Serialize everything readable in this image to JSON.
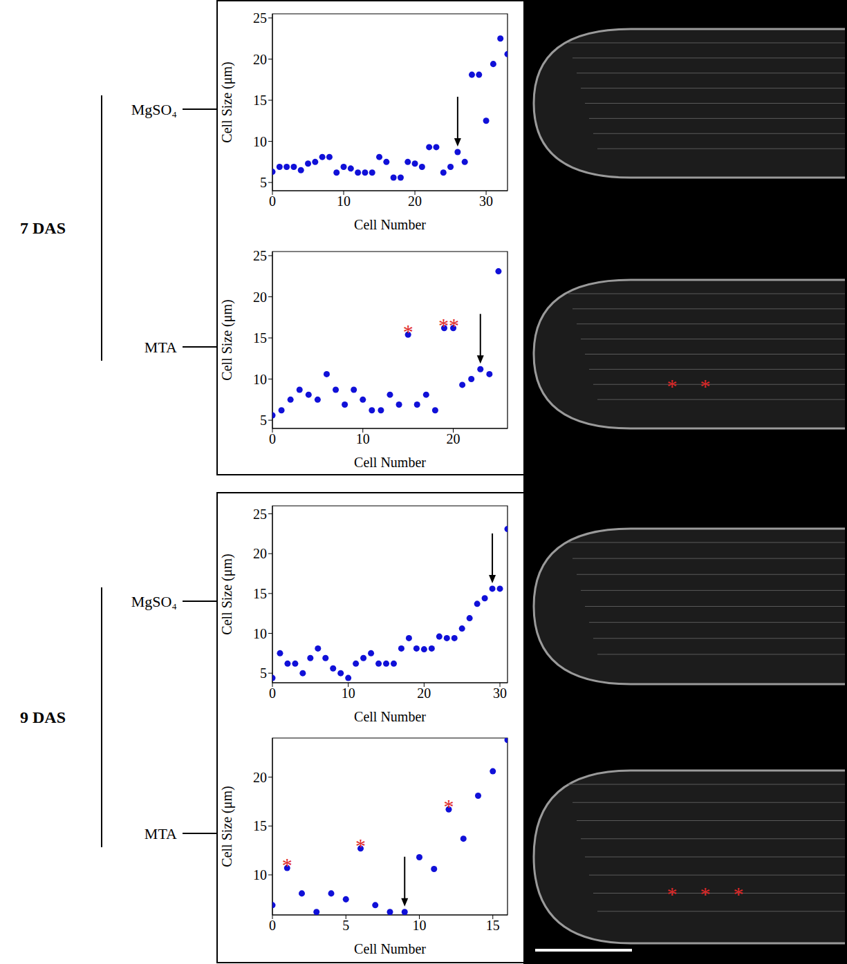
{
  "groups": [
    {
      "label": "7 DAS",
      "conditions": [
        "MgSO₄",
        "MTA"
      ]
    },
    {
      "label": "9 DAS",
      "conditions": [
        "MgSO₄",
        "MTA"
      ]
    }
  ],
  "chart_data": [
    {
      "type": "scatter",
      "x": [
        0,
        1,
        2,
        3,
        4,
        5,
        6,
        7,
        8,
        9,
        10,
        11,
        12,
        13,
        14,
        15,
        16,
        17,
        18,
        19,
        20,
        21,
        22,
        23,
        24,
        25,
        26,
        27,
        28,
        29,
        30,
        31,
        32,
        33
      ],
      "values": [
        6.3,
        6.9,
        6.9,
        6.9,
        6.5,
        7.3,
        7.5,
        8.1,
        8.1,
        6.2,
        6.9,
        6.7,
        6.2,
        6.2,
        6.2,
        8.1,
        7.5,
        5.6,
        5.6,
        7.5,
        7.3,
        6.9,
        9.3,
        9.3,
        6.2,
        6.9,
        8.7,
        7.5,
        18.1,
        18.1,
        12.5,
        19.4,
        22.5,
        20.6
      ],
      "color": "#1010d8",
      "marker": "circle",
      "xlim": [
        0,
        33
      ],
      "xticks": [
        0,
        10,
        20,
        30
      ],
      "ylim": [
        4,
        25.5
      ],
      "yticks": [
        5,
        10,
        15,
        20,
        25
      ],
      "x_label": "Cell Number",
      "y_label": "Cell Size (μm)",
      "arrow": {
        "x": 26,
        "y": 8.7
      },
      "annotations": [],
      "image_annotations": []
    },
    {
      "type": "scatter",
      "x": [
        0,
        1,
        2,
        3,
        4,
        5,
        6,
        7,
        8,
        9,
        10,
        11,
        12,
        13,
        14,
        15,
        16,
        17,
        18,
        19,
        20,
        21,
        22,
        23,
        24,
        25
      ],
      "values": [
        5.6,
        6.2,
        7.5,
        8.7,
        8.1,
        7.5,
        10.6,
        8.7,
        6.9,
        8.7,
        7.5,
        6.2,
        6.2,
        8.1,
        6.9,
        15.4,
        6.9,
        8.1,
        6.2,
        16.2,
        16.2,
        9.3,
        10.0,
        11.2,
        10.6,
        23.1
      ],
      "color": "#1010d8",
      "marker": "circle",
      "xlim": [
        0,
        26
      ],
      "xticks": [
        0,
        10,
        20
      ],
      "ylim": [
        4,
        25.5
      ],
      "yticks": [
        5,
        10,
        15,
        20,
        25
      ],
      "x_label": "Cell Number",
      "y_label": "Cell Size (μm)",
      "arrow": {
        "x": 23,
        "y": 11.2
      },
      "annotations": [
        {
          "x": 15,
          "y": 15.4,
          "text": "*"
        },
        {
          "x": 19.5,
          "y": 16.2,
          "text": "**"
        }
      ],
      "image_annotations": [
        "*",
        "*"
      ]
    },
    {
      "type": "scatter",
      "x": [
        0,
        1,
        2,
        3,
        4,
        5,
        6,
        7,
        8,
        9,
        10,
        11,
        12,
        13,
        14,
        15,
        16,
        17,
        18,
        19,
        20,
        21,
        22,
        23,
        24,
        25,
        26,
        27,
        28,
        29,
        30,
        31
      ],
      "values": [
        4.4,
        7.5,
        6.2,
        6.2,
        5.0,
        6.9,
        8.1,
        6.9,
        5.6,
        5.0,
        4.4,
        6.2,
        6.9,
        7.5,
        6.2,
        6.2,
        6.2,
        8.1,
        9.4,
        8.1,
        8.0,
        8.1,
        9.6,
        9.4,
        9.4,
        10.6,
        11.9,
        13.7,
        14.4,
        15.6,
        15.6,
        23.1
      ],
      "color": "#1010d8",
      "marker": "circle",
      "xlim": [
        0,
        31
      ],
      "xticks": [
        0,
        10,
        20,
        30
      ],
      "ylim": [
        3.8,
        26
      ],
      "yticks": [
        5,
        10,
        15,
        20,
        25
      ],
      "x_label": "Cell Number",
      "y_label": "Cell Size (μm)",
      "arrow": {
        "x": 29,
        "y": 15.6
      },
      "annotations": [],
      "image_annotations": []
    },
    {
      "type": "scatter",
      "x": [
        0,
        1,
        2,
        3,
        4,
        5,
        6,
        7,
        8,
        9,
        10,
        11,
        12,
        13,
        14,
        15,
        16
      ],
      "values": [
        6.9,
        10.7,
        8.1,
        6.2,
        8.1,
        7.5,
        12.7,
        6.9,
        6.2,
        6.2,
        11.8,
        10.6,
        16.7,
        13.7,
        18.1,
        20.6,
        23.8
      ],
      "color": "#1010d8",
      "marker": "circle",
      "xlim": [
        0,
        16
      ],
      "xticks": [
        0,
        5,
        10,
        15
      ],
      "ylim": [
        5.9,
        24
      ],
      "yticks": [
        10,
        15,
        20
      ],
      "x_label": "Cell Number",
      "y_label": "Cell Size (μm)",
      "arrow": {
        "x": 9,
        "y": 6.2
      },
      "annotations": [
        {
          "x": 1,
          "y": 10.7,
          "text": "*"
        },
        {
          "x": 6,
          "y": 12.7,
          "text": "*"
        },
        {
          "x": 12,
          "y": 16.7,
          "text": "*"
        }
      ],
      "image_annotations": [
        "*",
        "*",
        "*"
      ]
    }
  ]
}
